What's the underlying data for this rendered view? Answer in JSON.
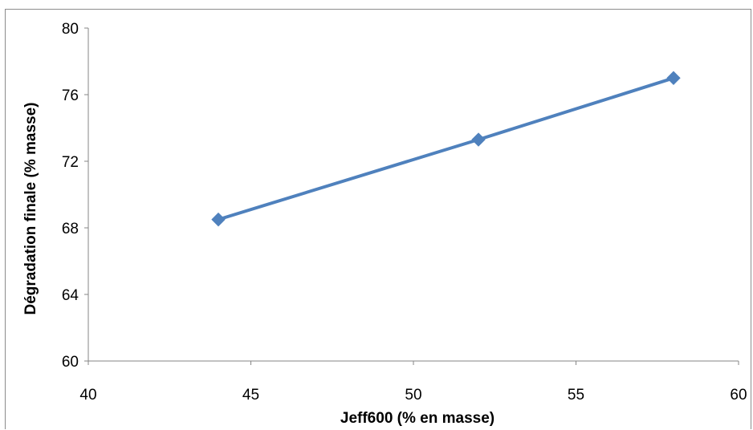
{
  "chart_data": {
    "type": "line",
    "title": "",
    "xlabel": "Jeff600 (% en masse)",
    "ylabel": "Dégradation finale (% masse)",
    "xlim": [
      40,
      60
    ],
    "ylim": [
      60,
      80
    ],
    "x_ticks": [
      "40",
      "45",
      "50",
      "55",
      "60"
    ],
    "y_ticks": [
      "60",
      "64",
      "68",
      "72",
      "76",
      "80"
    ],
    "grid": false,
    "legend": "none",
    "series": [
      {
        "x": [
          44,
          52,
          58
        ],
        "y": [
          68.5,
          73.3,
          77.0
        ],
        "color": "#4f81bd",
        "marker": "diamond"
      }
    ]
  }
}
